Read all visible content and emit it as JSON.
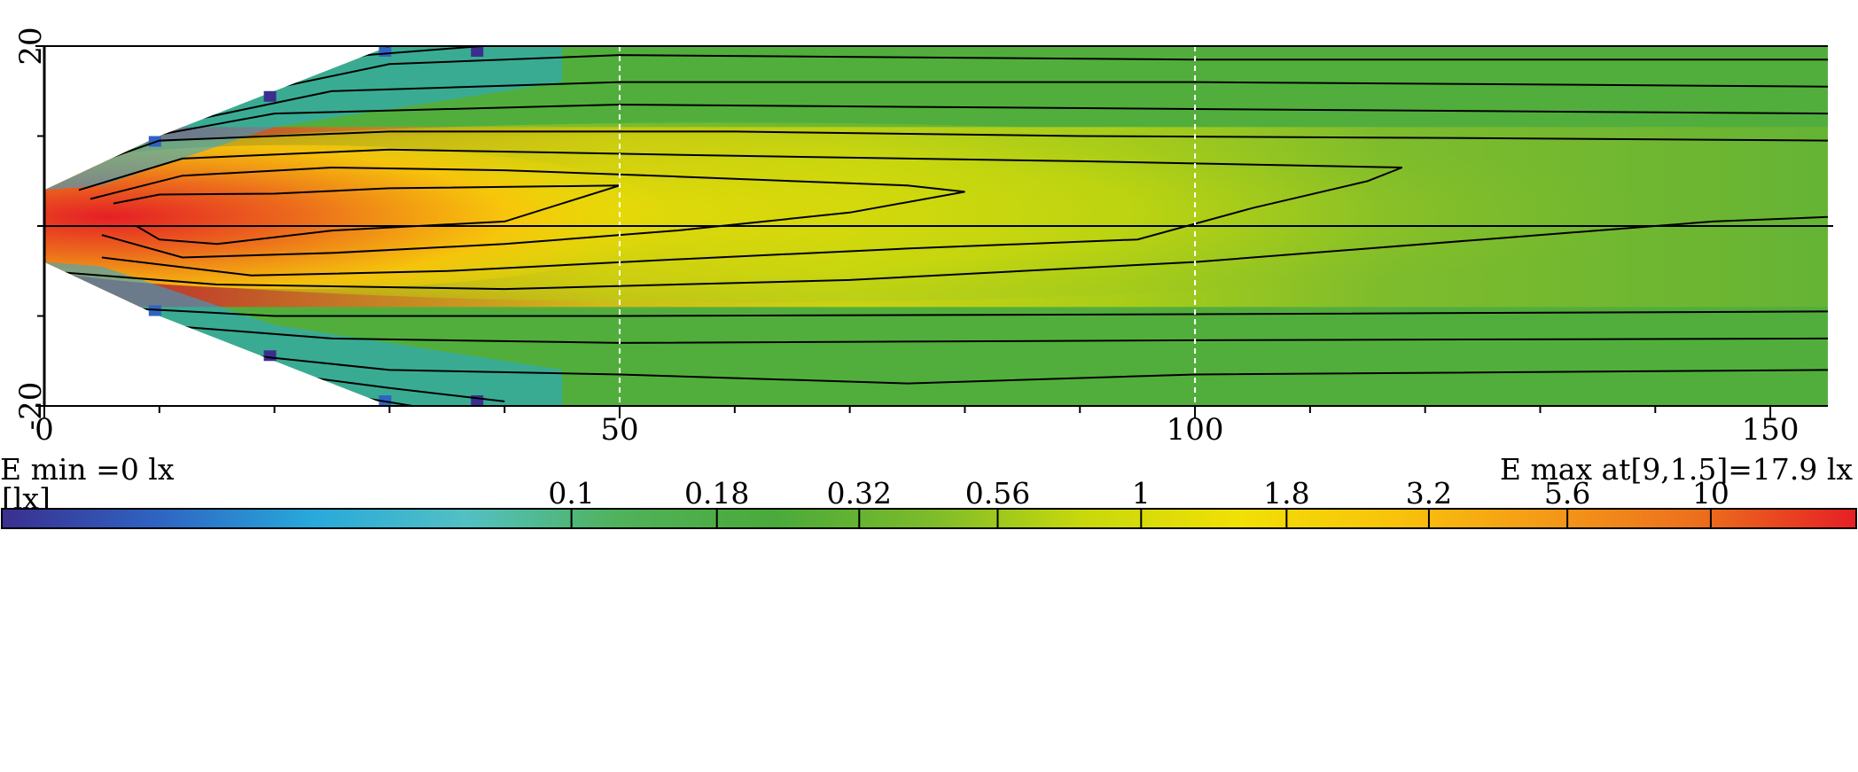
{
  "chart_data": {
    "type": "heatmap",
    "title": "",
    "xlabel": "",
    "ylabel": "",
    "xlim": [
      0,
      155
    ],
    "ylim": [
      -20,
      20
    ],
    "x_ticks": [
      0,
      50,
      100,
      150
    ],
    "x_minor_ticks": [
      10,
      20,
      30,
      40,
      60,
      70,
      80,
      90,
      110,
      120,
      130,
      140
    ],
    "y_ticks": [
      -20,
      20
    ],
    "y_minor_ticks": [
      -10,
      0,
      10
    ],
    "grid": "dashed vertical lines at x = 50 and x = 100; solid centerline at y = 0",
    "e_min_text": "E  min =0 lx",
    "e_max_text": "E  max at[9,1.5]=17.9 lx",
    "e_max_point": {
      "x": 9,
      "y": 1.5,
      "value": 17.9
    },
    "unit_label": "[lx]",
    "colorbar": {
      "scale": "log",
      "range": [
        0.01,
        18
      ],
      "tick_labels": [
        "0.1",
        "0.18",
        "0.32",
        "0.56",
        "1",
        "1.8",
        "3.2",
        "5.6",
        "10"
      ],
      "tick_values": [
        0.1,
        0.18,
        0.32,
        0.56,
        1,
        1.8,
        3.2,
        5.6,
        10
      ],
      "colors": [
        "#3a2f8f",
        "#2f63c2",
        "#27a9db",
        "#52c0c4",
        "#50b25a",
        "#4aaa3a",
        "#7cbb2a",
        "#c8d80c",
        "#f1e005",
        "#f9c30b",
        "#f49a17",
        "#ec6e1c",
        "#e51f25"
      ]
    },
    "beam_coverage": [
      {
        "x": 0,
        "half_width": 4
      },
      {
        "x": 10,
        "half_width": 10
      },
      {
        "x": 20,
        "half_width": 15
      },
      {
        "x": 30,
        "half_width": 20
      },
      {
        "x": 38,
        "half_width": 21
      }
    ],
    "hot_core": {
      "x_end": 52,
      "peak": {
        "x": 9,
        "y": 1.5
      }
    },
    "contours": [
      {
        "level": 10,
        "points": [
          [
            6,
            2.5
          ],
          [
            10,
            3.5
          ],
          [
            20,
            3.6
          ],
          [
            30,
            4.2
          ],
          [
            50,
            4.5
          ],
          [
            40,
            0.5
          ],
          [
            25,
            -0.5
          ],
          [
            15,
            -2
          ],
          [
            10,
            -1.5
          ],
          [
            8,
            0
          ]
        ]
      },
      {
        "level": 5.6,
        "points": [
          [
            4,
            3
          ],
          [
            12,
            5.6
          ],
          [
            25,
            6.5
          ],
          [
            40,
            6.2
          ],
          [
            55,
            5.5
          ],
          [
            75,
            4.5
          ],
          [
            80,
            3.8
          ],
          [
            70,
            1.5
          ],
          [
            55,
            -0.5
          ],
          [
            40,
            -2
          ],
          [
            25,
            -3
          ],
          [
            12,
            -3.5
          ],
          [
            5,
            -1
          ]
        ]
      },
      {
        "level": 3.2,
        "points": [
          [
            3,
            4
          ],
          [
            12,
            7.5
          ],
          [
            30,
            8.5
          ],
          [
            60,
            7.8
          ],
          [
            90,
            7.2
          ],
          [
            118,
            6.5
          ],
          [
            115,
            5
          ],
          [
            105,
            2
          ],
          [
            95,
            -1.5
          ],
          [
            75,
            -2.5
          ],
          [
            55,
            -3.7
          ],
          [
            35,
            -5
          ],
          [
            18,
            -5.5
          ],
          [
            5,
            -3.5
          ]
        ]
      },
      {
        "level": 1.8,
        "points": [
          [
            0,
            5
          ],
          [
            10,
            9.5
          ],
          [
            30,
            10.5
          ],
          [
            60,
            10.5
          ],
          [
            90,
            10
          ],
          [
            120,
            9.8
          ],
          [
            155,
            9.5
          ]
        ]
      },
      {
        "level": 1.8,
        "points": [
          [
            0,
            -5
          ],
          [
            15,
            -6.5
          ],
          [
            40,
            -7
          ],
          [
            70,
            -6
          ],
          [
            100,
            -4
          ],
          [
            125,
            -1.5
          ],
          [
            145,
            0.5
          ],
          [
            155,
            1
          ]
        ]
      },
      {
        "level": 1,
        "points": [
          [
            5,
            9
          ],
          [
            20,
            12.5
          ],
          [
            50,
            13.5
          ],
          [
            100,
            13
          ],
          [
            155,
            12.5
          ]
        ]
      },
      {
        "level": 1,
        "points": [
          [
            5,
            -9
          ],
          [
            20,
            -10
          ],
          [
            50,
            -10
          ],
          [
            100,
            -9.8
          ],
          [
            155,
            -9.5
          ]
        ]
      },
      {
        "level": 0.56,
        "points": [
          [
            10,
            11
          ],
          [
            25,
            15
          ],
          [
            50,
            16
          ],
          [
            100,
            16
          ],
          [
            155,
            15.5
          ]
        ]
      },
      {
        "level": 0.56,
        "points": [
          [
            10,
            -11
          ],
          [
            25,
            -12.5
          ],
          [
            50,
            -13
          ],
          [
            100,
            -12.7
          ],
          [
            155,
            -12.5
          ]
        ]
      },
      {
        "level": 0.32,
        "points": [
          [
            15,
            14
          ],
          [
            30,
            18
          ],
          [
            50,
            19
          ],
          [
            100,
            18.5
          ],
          [
            155,
            18.5
          ]
        ]
      },
      {
        "level": 0.32,
        "points": [
          [
            15,
            -14
          ],
          [
            30,
            -16
          ],
          [
            50,
            -16.5
          ],
          [
            75,
            -17.5
          ],
          [
            100,
            -16.5
          ],
          [
            155,
            -16
          ]
        ]
      },
      {
        "level": 0.18,
        "points": [
          [
            18,
            16
          ],
          [
            28,
            19
          ],
          [
            38,
            20
          ]
        ]
      },
      {
        "level": 0.18,
        "points": [
          [
            18,
            -16
          ],
          [
            30,
            -18
          ],
          [
            40,
            -19.5
          ]
        ]
      },
      {
        "level": 0.1,
        "points": [
          [
            20,
            17.5
          ],
          [
            30,
            20
          ]
        ]
      },
      {
        "level": 0.1,
        "points": [
          [
            20,
            -17.5
          ],
          [
            32,
            -20
          ]
        ]
      }
    ]
  }
}
